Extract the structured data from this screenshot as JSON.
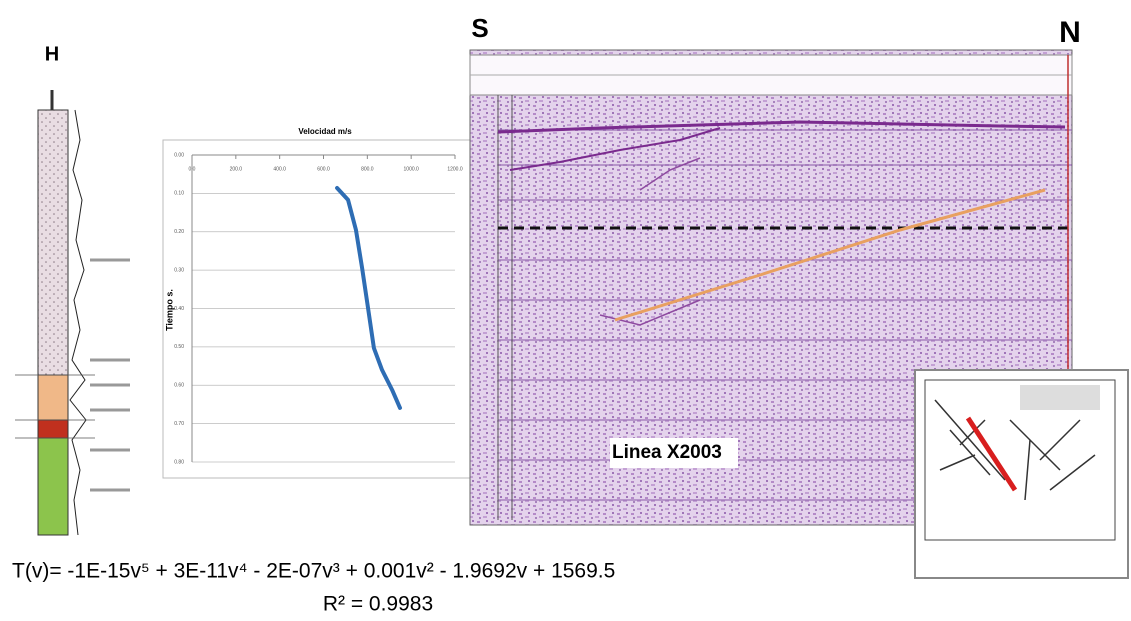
{
  "labels": {
    "well": "H",
    "south": "S",
    "north": "N",
    "line_name": "Linea X2003",
    "equation": "T(v)= -1E-15v⁵ + 3E-11v⁴ - 2E-07v³ + 0.001v² - 1.9692v + 1569.5",
    "r_squared": "R² = 0.9983"
  },
  "chart_data": {
    "type": "line",
    "title": "Velocidad m/s",
    "y_label": "Tiempo s.",
    "x": [
      662,
      712,
      748,
      776,
      803,
      830,
      867,
      913,
      949
    ],
    "values": [
      0.086,
      0.117,
      0.195,
      0.294,
      0.398,
      0.503,
      0.56,
      0.612,
      0.659
    ],
    "color": "#2e6db4",
    "xlim": [
      0,
      1200
    ],
    "xticks": [
      {
        "value": 0,
        "label": "0.0"
      },
      {
        "value": 200,
        "label": "200.0"
      },
      {
        "value": 400,
        "label": "400.0"
      },
      {
        "value": 600,
        "label": "600.0"
      },
      {
        "value": 800,
        "label": "800.0"
      },
      {
        "value": 1000,
        "label": "1000.0"
      },
      {
        "value": 1200,
        "label": "1200.0"
      }
    ],
    "ylim": [
      0.8,
      0
    ],
    "yticks": [
      {
        "value": 0,
        "label": "0.00"
      },
      {
        "value": 0.1,
        "label": "0.10"
      },
      {
        "value": 0.2,
        "label": "0.20"
      },
      {
        "value": 0.3,
        "label": "0.30"
      },
      {
        "value": 0.4,
        "label": "0.40"
      },
      {
        "value": 0.5,
        "label": "0.50"
      },
      {
        "value": 0.6,
        "label": "0.60"
      },
      {
        "value": 0.7,
        "label": "0.70"
      },
      {
        "value": 0.8,
        "label": "0.80"
      }
    ],
    "grid": true
  }
}
